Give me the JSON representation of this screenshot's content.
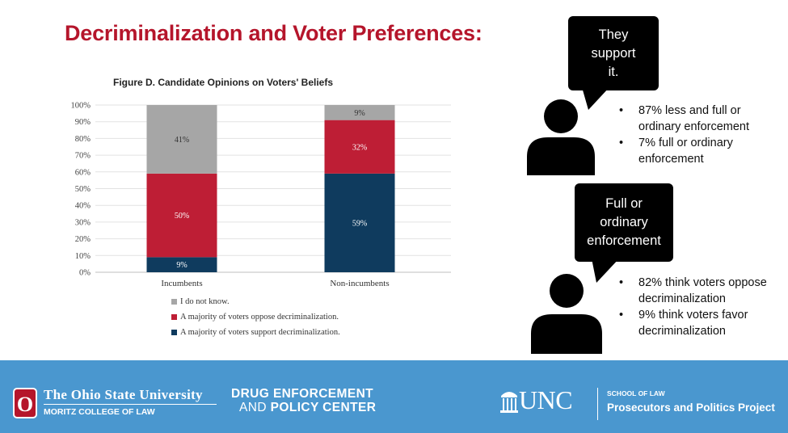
{
  "slide": {
    "title": "Decriminalization and Voter Preferences:"
  },
  "colors": {
    "title": "#b5152b",
    "gray": "#a6a6a6",
    "red": "#be1e35",
    "navy": "#0f3b5e",
    "footer": "#4a97cf"
  },
  "chart_data": {
    "type": "bar",
    "stacked": true,
    "title": "Figure D. Candidate Opinions on Voters' Beliefs",
    "categories": [
      "Incumbents",
      "Non-incumbents"
    ],
    "series": [
      {
        "name": "A majority of voters support decriminalization.",
        "values": [
          9,
          59
        ],
        "labels": [
          "9%",
          "59%"
        ],
        "color": "#0f3b5e"
      },
      {
        "name": "A majority of voters oppose decriminalization.",
        "values": [
          50,
          32
        ],
        "labels": [
          "50%",
          "32%"
        ],
        "color": "#be1e35"
      },
      {
        "name": "I do not know.",
        "values": [
          41,
          9
        ],
        "labels": [
          "41%",
          "9%"
        ],
        "color": "#a6a6a6"
      }
    ],
    "legend_order": [
      2,
      1,
      0
    ],
    "ylim": [
      0,
      100
    ],
    "yticks": [
      0,
      10,
      20,
      30,
      40,
      50,
      60,
      70,
      80,
      90,
      100
    ],
    "ytick_labels": [
      "0%",
      "10%",
      "20%",
      "30%",
      "40%",
      "50%",
      "60%",
      "70%",
      "80%",
      "90%",
      "100%"
    ],
    "xlabel": "",
    "ylabel": "",
    "grid": true,
    "legend_position": "bottom"
  },
  "legend": {
    "items": [
      {
        "label": "I do not know.",
        "color": "#a6a6a6"
      },
      {
        "label": "A majority of voters oppose decriminalization.",
        "color": "#be1e35"
      },
      {
        "label": "A majority of voters support decriminalization.",
        "color": "#0f3b5e"
      }
    ]
  },
  "callouts": [
    {
      "bubble_lines": [
        "They",
        "support",
        "it."
      ],
      "bullets": [
        "87% less and full or ordinary enforcement",
        "7% full or ordinary enforcement"
      ]
    },
    {
      "bubble_lines": [
        "Full or",
        "ordinary",
        "enforcement"
      ],
      "bullets": [
        "82% think voters oppose decriminalization",
        "9% think voters favor decriminalization"
      ]
    }
  ],
  "footer": {
    "osu_letter": "O",
    "osu_name": "The Ohio State University",
    "osu_college": "MORITZ COLLEGE OF LAW",
    "depc_line1": "DRUG ENFORCEMENT",
    "depc_and": "AND",
    "depc_line2": "POLICY CENTER",
    "unc_name": "UNC",
    "unc_school": "SCHOOL OF LAW",
    "unc_project": "Prosecutors and Politics Project"
  }
}
